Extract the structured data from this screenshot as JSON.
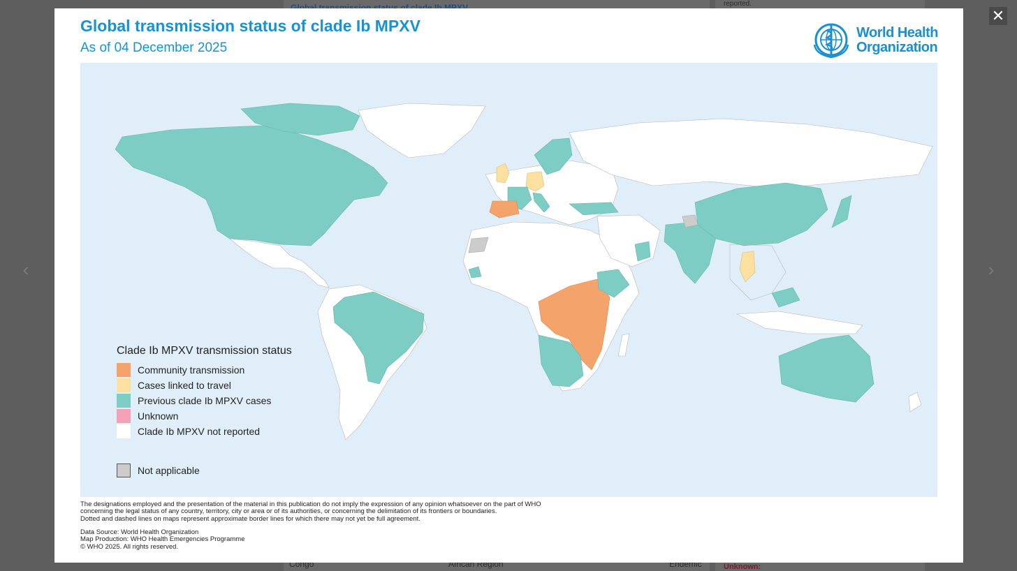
{
  "background": {
    "title": "Global transmission status of clade Ib MPXV",
    "right_note": "reported.",
    "row_country": "Congo",
    "row_region": "African Region",
    "row_status": "Endemic",
    "right_footer": "Unknown:"
  },
  "lightbox": {
    "prev_icon": "‹",
    "next_icon": "›",
    "close_icon": "✕"
  },
  "map_card": {
    "title": "Global transmission status of clade Ib MPXV",
    "subtitle": "As of 04 December 2025",
    "logo": {
      "line1": "World Health",
      "line2": "Organization",
      "icon": "who-emblem-icon"
    },
    "legend": {
      "title": "Clade Ib MPXV transmission status",
      "items": [
        {
          "label": "Community transmission",
          "color": "#f4a46a"
        },
        {
          "label": "Cases linked to travel",
          "color": "#fbe0a0"
        },
        {
          "label": "Previous clade Ib MPXV cases",
          "color": "#7dcdc4"
        },
        {
          "label": "Unknown",
          "color": "#f7a1b7"
        },
        {
          "label": "Clade Ib MPXV not reported",
          "color": "#ffffff"
        }
      ],
      "not_applicable": {
        "label": "Not applicable",
        "color": "#cccccc"
      }
    },
    "disclaimer": [
      "The designations employed and the presentation of the material in this publication do not imply the expression of any opinion whatsoever on the part of WHO",
      "concerning the legal status of any country, territory, city or area or of its authorities, or concerning the delimitation of its frontiers or boundaries.",
      "Dotted and dashed lines on maps represent approximate border lines for which there may not yet be full agreement."
    ],
    "credits": [
      "Data Source: World Health Organization",
      "Map Production: WHO Health Emergencies Programme",
      "© WHO 2025. All rights reserved."
    ],
    "colors": {
      "ocean": "#dfeef8",
      "land": "#ffffff",
      "title": "#1593d3"
    }
  }
}
